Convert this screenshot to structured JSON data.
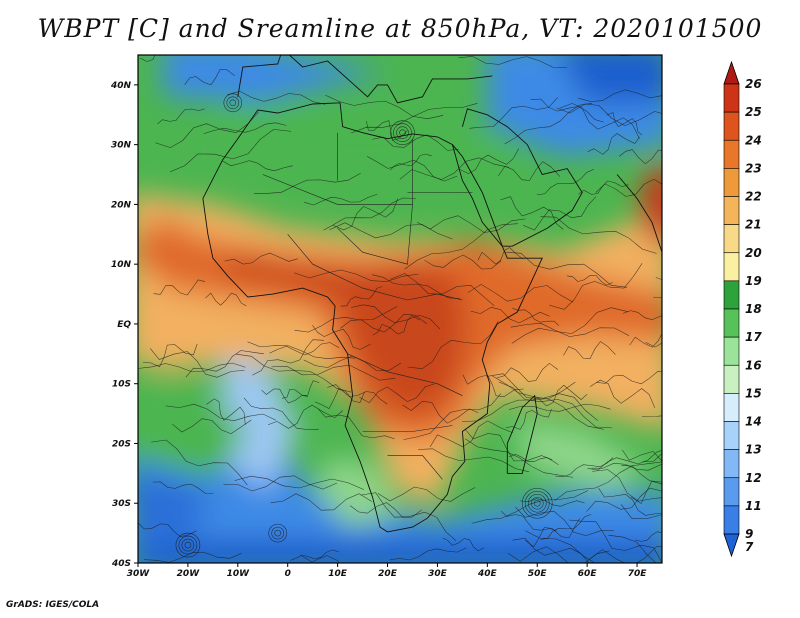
{
  "title": "WBPT [C] and Sreamline at 850hPa, VT: 2020101500",
  "credit": "GrADS: IGES/COLA",
  "map": {
    "lat_labels": [
      "40N",
      "30N",
      "20N",
      "10N",
      "EQ",
      "10S",
      "20S",
      "30S",
      "40S"
    ],
    "lon_labels": [
      "30W",
      "20W",
      "10W",
      "0",
      "10E",
      "20E",
      "30E",
      "40E",
      "50E",
      "60E",
      "70E"
    ],
    "lat_range": [
      -40,
      45
    ],
    "lon_range": [
      -30,
      75
    ]
  },
  "colorbar": {
    "levels": [
      "7",
      "9",
      "11",
      "12",
      "13",
      "14",
      "15",
      "16",
      "17",
      "18",
      "19",
      "20",
      "21",
      "22",
      "23",
      "24",
      "25",
      "26"
    ],
    "colors": [
      "#1e62d6",
      "#3a7fe6",
      "#5b9bef",
      "#82b8f5",
      "#a9d2fa",
      "#d6eefc",
      "#c8f0c0",
      "#9be29a",
      "#58c25a",
      "#2ea33c",
      "#fbf0a2",
      "#f7d987",
      "#f4b55a",
      "#ef9a3a",
      "#e8772a",
      "#dd541e",
      "#cc3317",
      "#b01a12"
    ]
  },
  "fields": {
    "cool_color": "#3d8ae6",
    "cold_color": "#1f5fce",
    "green_color": "#4cb550",
    "warm_color": "#f2b060",
    "hot_color": "#e06a2a",
    "hottest_color": "#c9461c"
  }
}
